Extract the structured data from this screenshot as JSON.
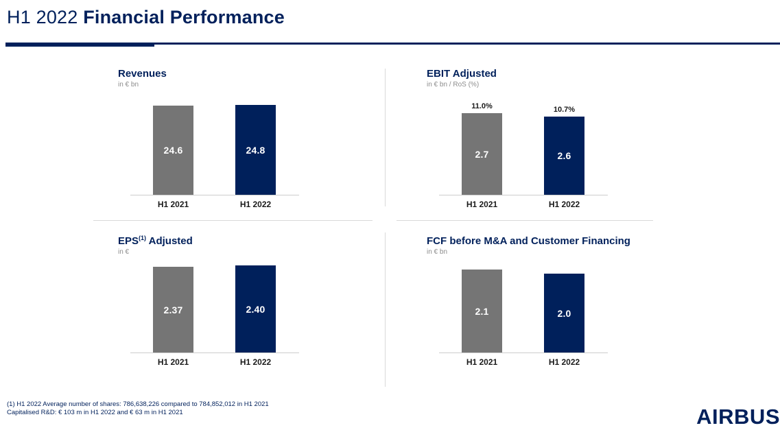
{
  "slide": {
    "title_regular": "H1 2022 ",
    "title_bold": "Financial Performance"
  },
  "footer": {
    "line1": "(1) H1 2022 Average number of shares: 786,638,226 compared to 784,852,012 in H1 2021",
    "line2": "Capitalised R&D: € 103 m in H1 2022 and € 63 m in H1 2021"
  },
  "logo": {
    "text": "AIRBUS"
  },
  "colors": {
    "navy": "#00205B",
    "gray_bar": "#757575",
    "subtitle_gray": "#8c8c8c",
    "axis_line": "#cccccc",
    "divider": "#d9d9d9",
    "label_dark": "#1a1a1a"
  },
  "chart_data": [
    {
      "id": "revenues",
      "type": "bar",
      "title": "Revenues",
      "title_parts": {
        "pre": "Revenues",
        "sup": "",
        "post": ""
      },
      "subtitle": "in € bn",
      "categories": [
        "H1 2021",
        "H1 2022"
      ],
      "values": [
        24.6,
        24.8
      ],
      "value_labels": [
        "24.6",
        "24.8"
      ],
      "top_labels": [
        "",
        ""
      ],
      "ylim": [
        0,
        25
      ],
      "bar_colors": [
        "#757575",
        "#00205B"
      ],
      "legend": "none",
      "grid": false
    },
    {
      "id": "ebit-adjusted",
      "type": "bar",
      "title": "EBIT Adjusted",
      "title_parts": {
        "pre": "EBIT Adjusted",
        "sup": "",
        "post": ""
      },
      "subtitle": "in € bn / RoS (%)",
      "categories": [
        "H1 2021",
        "H1 2022"
      ],
      "values": [
        2.7,
        2.6
      ],
      "value_labels": [
        "2.7",
        "2.6"
      ],
      "top_labels": [
        "11.0%",
        "10.7%"
      ],
      "ylim": [
        0,
        3
      ],
      "bar_colors": [
        "#757575",
        "#00205B"
      ],
      "legend": "none",
      "grid": false
    },
    {
      "id": "eps-adjusted",
      "type": "bar",
      "title": "EPS(1) Adjusted",
      "title_parts": {
        "pre": "EPS",
        "sup": "(1)",
        "post": " Adjusted"
      },
      "subtitle": "in €",
      "categories": [
        "H1 2021",
        "H1 2022"
      ],
      "values": [
        2.37,
        2.4
      ],
      "value_labels": [
        "2.37",
        "2.40"
      ],
      "top_labels": [
        "",
        ""
      ],
      "ylim": [
        0,
        2.5
      ],
      "bar_colors": [
        "#757575",
        "#00205B"
      ],
      "legend": "none",
      "grid": false
    },
    {
      "id": "fcf-before-ma-and-customer-financing",
      "type": "bar",
      "title": "FCF before M&A and Customer Financing",
      "title_parts": {
        "pre": "FCF before M&A and Customer Financing",
        "sup": "",
        "post": ""
      },
      "subtitle": "in € bn",
      "categories": [
        "H1 2021",
        "H1 2022"
      ],
      "values": [
        2.1,
        2.0
      ],
      "value_labels": [
        "2.1",
        "2.0"
      ],
      "top_labels": [
        "",
        ""
      ],
      "ylim": [
        0,
        2.3
      ],
      "bar_colors": [
        "#757575",
        "#00205B"
      ],
      "legend": "none",
      "grid": false
    }
  ]
}
